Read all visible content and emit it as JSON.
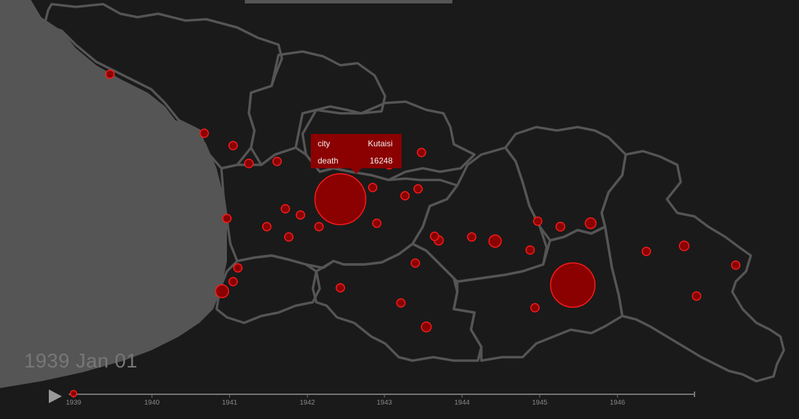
{
  "date_label": "1939 Jan 01",
  "tooltip": {
    "city_key": "city",
    "city_value": "Kutaisi",
    "death_key": "death",
    "death_value": "16248"
  },
  "timeline": {
    "ticks": [
      "1939",
      "1940",
      "1941",
      "1942",
      "1943",
      "1944",
      "1945",
      "1946"
    ],
    "current": "1939"
  },
  "colors": {
    "background": "#1a1a1a",
    "border": "#555555",
    "marker_fill": "#8b0000",
    "marker_stroke": "#ff1a1a",
    "label": "#777777"
  },
  "icons": {
    "play": "play-icon"
  },
  "markers": [
    {
      "death": 240
    },
    {
      "death": 340
    },
    {
      "death": 360
    },
    {
      "death": 460
    },
    {
      "death": 150
    },
    {
      "death": 120
    },
    {
      "death": 290
    },
    {
      "death": 270
    },
    {
      "death": 280
    },
    {
      "death": 180
    },
    {
      "death": 340
    },
    {
      "death": 16248
    },
    {
      "death": 200
    },
    {
      "death": 380
    },
    {
      "death": 300
    },
    {
      "death": 360
    },
    {
      "death": 190
    },
    {
      "death": 520
    },
    {
      "death": 360
    },
    {
      "death": 950
    },
    {
      "death": 300
    },
    {
      "death": 1040
    },
    {
      "death": 260
    },
    {
      "death": 190
    },
    {
      "death": 270
    },
    {
      "death": 140
    },
    {
      "death": 12400
    },
    {
      "death": 210
    },
    {
      "death": 590
    },
    {
      "death": 230
    },
    {
      "death": 100
    },
    {
      "death": 180
    },
    {
      "death": 480
    },
    {
      "death": 720
    },
    {
      "death": 230
    },
    {
      "death": 570
    },
    {
      "death": 440
    },
    {
      "death": 240
    },
    {
      "death": 80
    }
  ]
}
